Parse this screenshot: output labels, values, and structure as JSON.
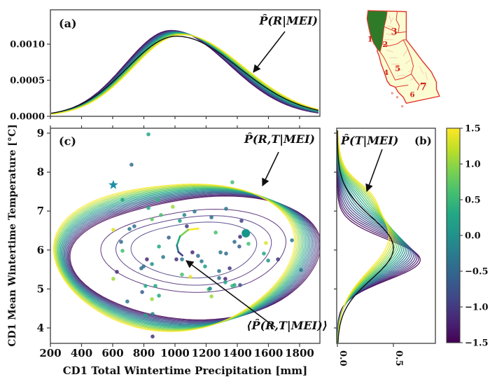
{
  "figure_labels": {
    "panel_a": "(a)",
    "panel_b": "(b)",
    "panel_c": "(c)",
    "ann_a": "P̂(R|MEI)",
    "ann_c": "P̂(R,T|MEI)",
    "ann_b": "P̂(T|MEI)",
    "ann_mean": "⟨P̂(R,T|MEI)⟩",
    "xlabel": "CD1 Total Wintertime Precipitation [mm]",
    "ylabel": "CD1 Mean Wintertime Temperature [°C]"
  },
  "colors": {
    "viridis": [
      [
        0,
        "#440154"
      ],
      [
        0.1,
        "#482475"
      ],
      [
        0.2,
        "#414487"
      ],
      [
        0.3,
        "#355f8d"
      ],
      [
        0.4,
        "#2a788e"
      ],
      [
        0.5,
        "#21918c"
      ],
      [
        0.6,
        "#22a884"
      ],
      [
        0.7,
        "#44bf70"
      ],
      [
        0.8,
        "#7ad151"
      ],
      [
        0.9,
        "#bddf26"
      ],
      [
        1,
        "#fde725"
      ]
    ],
    "black_curve": "#111111",
    "axis": "#3b3b3b",
    "map_land": "#fcfcd2",
    "map_border": "#e03a2f",
    "map_highlight": "#2f7a28",
    "map_label": "#cf2318",
    "star": "#1f8fa8",
    "big_dot": "#17968b"
  },
  "chart_data": [
    {
      "id": "panel_a",
      "type": "line",
      "description": "Family of estimated precipitation PDFs conditioned on MEI, plus unconditional PDF (black)",
      "xlim": [
        200,
        1930
      ],
      "ylim": [
        0,
        0.00148
      ],
      "yticks": [
        "0.0010",
        "0.0005",
        "0.0000"
      ],
      "ytick_values": [
        0.001,
        0.0005,
        0.0
      ],
      "xtick_values": [
        200,
        400,
        600,
        800,
        1000,
        1200,
        1400,
        1600,
        1800
      ],
      "n_curves": 20,
      "mei_range": [
        -1.5,
        1.5
      ],
      "family": {
        "peak_x": [
          975,
          1045
        ],
        "peak_y": [
          0.00119,
          0.00113
        ],
        "sigma_left": [
          295,
          310
        ],
        "sigma_right": [
          370,
          395
        ]
      },
      "black": {
        "peak_x": 1010,
        "peak_y": 0.00111,
        "sigma_left": 315,
        "sigma_right": 400
      },
      "annotation": "P̂(R|MEI)",
      "grid": false
    },
    {
      "id": "panel_c",
      "type": "contour+scatter",
      "description": "Joint PDF contours of precipitation and temperature conditioned on MEI, with observed winters as dots colored by MEI",
      "xlabel": "CD1 Total Wintertime Precipitation [mm]",
      "ylabel": "CD1 Mean Wintertime Temperature [°C]",
      "xlim": [
        200,
        1930
      ],
      "ylim": [
        3.6,
        9.12
      ],
      "xticks": [
        "200",
        "400",
        "600",
        "800",
        "1000",
        "1200",
        "1400",
        "1600",
        "1800"
      ],
      "xtick_values": [
        200,
        400,
        600,
        800,
        1000,
        1200,
        1400,
        1600,
        1800
      ],
      "yticks": [
        "9",
        "8",
        "7",
        "6",
        "5",
        "4"
      ],
      "ytick_values": [
        9,
        8,
        7,
        6,
        5,
        4
      ],
      "n_contour_sets": 20,
      "mei_range": [
        -1.5,
        1.5
      ],
      "contour": {
        "cx": [
          1135,
          975
        ],
        "cy": [
          5.9,
          5.95
        ],
        "rx": [
          780,
          735
        ],
        "ry": [
          1.62,
          1.99
        ],
        "inner_purple_scales": [
          0.74,
          0.62,
          0.5
        ]
      },
      "scatter_points": [
        [
          829,
          8.97,
          0.6
        ],
        [
          721,
          8.19,
          0.35
        ],
        [
          1368,
          7.74,
          0.7
        ],
        [
          663,
          7.29,
          0.6
        ],
        [
          888,
          7.29,
          0.65
        ],
        [
          986,
          7.11,
          0.85
        ],
        [
          829,
          7.08,
          0.6
        ],
        [
          1126,
          6.99,
          0.4
        ],
        [
          1076,
          6.61,
          0.15
        ],
        [
          604,
          6.52,
          0.95
        ],
        [
          739,
          6.61,
          0.35
        ],
        [
          708,
          6.54,
          0.4
        ],
        [
          852,
          6.79,
          0.75
        ],
        [
          910,
          6.9,
          0.7
        ],
        [
          1031,
          6.75,
          0.55
        ],
        [
          1234,
          6.84,
          0.35
        ],
        [
          1261,
          6.45,
          0.7
        ],
        [
          1060,
          6.9,
          0.45
        ],
        [
          654,
          6.21,
          0.35
        ],
        [
          663,
          5.98,
          0.7
        ],
        [
          897,
          6.09,
          0.6
        ],
        [
          924,
          5.82,
          0.4
        ],
        [
          820,
          5.76,
          0.12
        ],
        [
          798,
          5.58,
          0.35
        ],
        [
          852,
          5.64,
          0.5
        ],
        [
          1045,
          5.76,
          0.4
        ],
        [
          1009,
          5.76,
          0.15
        ],
        [
          1112,
          5.94,
          0.12
        ],
        [
          1148,
          5.85,
          0.35
        ],
        [
          1171,
          5.71,
          0.4
        ],
        [
          960,
          6.32,
          0.3
        ],
        [
          1045,
          5.37,
          0.7
        ],
        [
          1099,
          5.31,
          0.95
        ],
        [
          627,
          5.44,
          0.12
        ],
        [
          604,
          5.26,
          0.85
        ],
        [
          784,
          5.53,
          0.35
        ],
        [
          874,
          5.08,
          0.6
        ],
        [
          789,
          4.92,
          0.3
        ],
        [
          694,
          4.68,
          0.4
        ],
        [
          1216,
          4.99,
          0.7
        ],
        [
          1193,
          5.58,
          0.55
        ],
        [
          1328,
          7.06,
          0.4
        ],
        [
          1427,
          6.75,
          0.2
        ],
        [
          1418,
          6.34,
          0.12
        ],
        [
          1382,
          6.21,
          0.35
        ],
        [
          1413,
          6.09,
          0.3
        ],
        [
          1472,
          6.16,
          0.7
        ],
        [
          1584,
          6.18,
          0.95
        ],
        [
          1292,
          5.94,
          0.4
        ],
        [
          1328,
          5.91,
          0.35
        ],
        [
          1571,
          5.91,
          0.6
        ],
        [
          1751,
          6.25,
          0.4
        ],
        [
          1661,
          5.76,
          0.15
        ],
        [
          1598,
          5.73,
          0.5
        ],
        [
          1283,
          5.46,
          0.4
        ],
        [
          1351,
          5.53,
          0.15
        ],
        [
          1283,
          5.28,
          0.35
        ],
        [
          1323,
          5.26,
          0.12
        ],
        [
          1382,
          5.1,
          0.6
        ],
        [
          1418,
          5.1,
          0.25
        ],
        [
          1809,
          5.49,
          0.4
        ],
        [
          811,
          5.08,
          0.6
        ],
        [
          897,
          4.83,
          0.6
        ],
        [
          852,
          4.74,
          0.85
        ],
        [
          856,
          4.36,
          0.45
        ],
        [
          811,
          4.32,
          0.6
        ],
        [
          1225,
          5.01,
          0.45
        ],
        [
          1323,
          5.17,
          0.6
        ],
        [
          1368,
          5.08,
          0.65
        ],
        [
          1234,
          4.81,
          0.85
        ],
        [
          856,
          3.78,
          0.15
        ]
      ],
      "star_point": [
        604,
        7.67,
        0.55
      ],
      "big_point": [
        1455,
        6.43,
        0.58
      ],
      "mean_trajectory": [
        [
          1150,
          6.55
        ],
        [
          1085,
          6.52
        ],
        [
          1032,
          6.35
        ],
        [
          1012,
          6.12
        ],
        [
          1022,
          5.95
        ],
        [
          1048,
          5.86
        ]
      ],
      "annotation_joint": "P̂(R,T|MEI)",
      "annotation_mean": "⟨P̂(R,T|MEI)⟩",
      "grid": false
    },
    {
      "id": "panel_b",
      "type": "line",
      "orientation": "vertical",
      "description": "Family of estimated temperature PDFs conditioned on MEI, plus unconditional PDF (black)",
      "xlim": [
        0,
        0.88
      ],
      "ylim": [
        3.6,
        9.12
      ],
      "xticks": [
        "0.0",
        "0.5"
      ],
      "xtick_values": [
        0,
        0.5
      ],
      "ytick_values": [
        9,
        8,
        7,
        6,
        5,
        4
      ],
      "n_curves": 20,
      "mei_range": [
        -1.5,
        1.5
      ],
      "family": {
        "mu": [
          5.75,
          6.35
        ],
        "amp": [
          0.74,
          0.46
        ],
        "sigma": [
          0.52,
          0.88
        ],
        "shoulder_T": 7.45,
        "shoulder_amp": [
          0,
          0.09
        ],
        "shoulder_sigma": 0.32
      },
      "black": {
        "mu": 6.05,
        "amp": 0.5,
        "sigma": 0.8
      },
      "annotation": "P̂(T|MEI)",
      "grid": false
    },
    {
      "id": "colorbar",
      "type": "colorbar",
      "colormap": "viridis",
      "range": [
        -1.5,
        1.5
      ],
      "ticks": [
        "1.5",
        "1.0",
        "0.5",
        "0.0",
        "−0.5",
        "−1.0",
        "−1.5"
      ],
      "tick_values": [
        1.5,
        1.0,
        0.5,
        0.0,
        -0.5,
        -1.0,
        -1.5
      ]
    }
  ],
  "map": {
    "name": "California climate divisions",
    "highlighted_division": "1",
    "division_labels": [
      "1",
      "2",
      "3",
      "4",
      "5",
      "6",
      "7"
    ]
  }
}
